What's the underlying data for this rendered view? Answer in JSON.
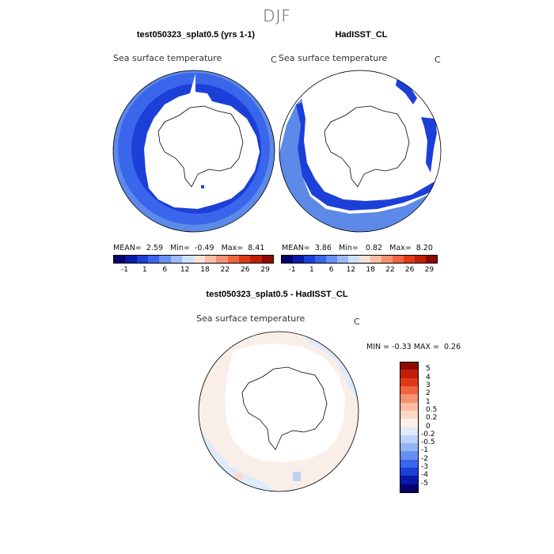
{
  "season": "DJF",
  "panels": [
    {
      "title": "test050323_splat0.5 (yrs 1-1)",
      "subtitle": "Sea surface temperature",
      "unit": "C",
      "mean_label": "MEAN=",
      "mean": "2.59",
      "min_label": "Min=",
      "min": "-0.49",
      "max_label": "Max=",
      "max": "8.41"
    },
    {
      "title": "HadISST_CL",
      "subtitle": "Sea surface temperature",
      "unit": "C",
      "mean_label": "MEAN=",
      "mean": "3.86",
      "min_label": "Min=",
      "min": "0.82",
      "max_label": "Max=",
      "max": "8.20"
    }
  ],
  "abs_colorbar": {
    "ticks": [
      "-1",
      "1",
      "6",
      "12",
      "18",
      "22",
      "26",
      "29"
    ],
    "colors": [
      "#08006e",
      "#0a1aa8",
      "#1c3fd8",
      "#3a66ec",
      "#6590f2",
      "#9bb9f6",
      "#cfe0fb",
      "#fbe1d6",
      "#f8bea5",
      "#f49373",
      "#ee6542",
      "#df3a18",
      "#c01f06",
      "#8e0a00"
    ]
  },
  "diff_panel": {
    "title": "test050323_splat0.5 - HadISST_CL",
    "subtitle": "Sea surface temperature",
    "unit": "C",
    "min_label": "MIN =",
    "min": "-0.33",
    "max_label": "MAX =",
    "max": "0.26"
  },
  "chart_data": [
    {
      "type": "heatmap",
      "title": "test050323_splat0.5 (yrs 1-1)",
      "variable": "Sea surface temperature",
      "units": "C",
      "projection": "south polar stereographic",
      "stats": {
        "mean": 2.59,
        "min": -0.49,
        "max": 8.41
      },
      "colorbar_ticks": [
        -1,
        1,
        6,
        12,
        18,
        22,
        26,
        29
      ]
    },
    {
      "type": "heatmap",
      "title": "HadISST_CL",
      "variable": "Sea surface temperature",
      "units": "C",
      "projection": "south polar stereographic",
      "stats": {
        "mean": 3.86,
        "min": 0.82,
        "max": 8.2
      },
      "colorbar_ticks": [
        -1,
        1,
        6,
        12,
        18,
        22,
        26,
        29
      ]
    },
    {
      "type": "heatmap",
      "title": "test050323_splat0.5 - HadISST_CL",
      "variable": "Sea surface temperature",
      "units": "C",
      "projection": "south polar stereographic",
      "stats": {
        "min": -0.33,
        "max": 0.26
      },
      "colorbar_levels": [
        "5",
        "4",
        "3",
        "2",
        "1",
        "0.5",
        "0.2",
        "0",
        "-0.2",
        "-0.5",
        "-1",
        "-2",
        "-3",
        "-4",
        "-5"
      ]
    }
  ],
  "diff_colorbar": {
    "levels": [
      "5",
      "4",
      "3",
      "2",
      "1",
      "0.5",
      "0.2",
      "0",
      "-0.2",
      "-0.5",
      "-1",
      "-2",
      "-3",
      "-4",
      "-5"
    ],
    "colors": [
      "#8e0a00",
      "#c01f06",
      "#df3a18",
      "#ee6542",
      "#f49373",
      "#f8bea5",
      "#fbd8c6",
      "#fcefe6",
      "#dfeafb",
      "#bcd2f8",
      "#93b3f3",
      "#6590f2",
      "#3a66ec",
      "#1c3fd8",
      "#0a1aa8",
      "#08006e"
    ]
  }
}
